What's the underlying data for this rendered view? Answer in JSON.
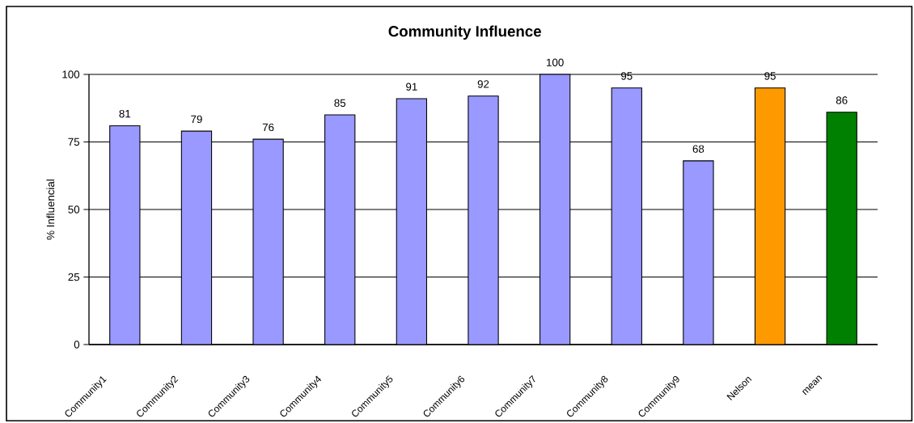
{
  "chart_data": {
    "type": "bar",
    "title": "Community Influence",
    "ylabel": "% Influencial",
    "categories": [
      "Community1",
      "Community2",
      "Community3",
      "Community4",
      "Community5",
      "Community6",
      "Community7",
      "Community8",
      "Community9",
      "Nelson",
      "mean"
    ],
    "values": [
      81,
      79,
      76,
      85,
      91,
      92,
      100,
      95,
      68,
      95,
      86
    ],
    "colors": [
      "#9999ff",
      "#9999ff",
      "#9999ff",
      "#9999ff",
      "#9999ff",
      "#9999ff",
      "#9999ff",
      "#9999ff",
      "#9999ff",
      "#ff9900",
      "#008000"
    ],
    "ylim": [
      0,
      100
    ],
    "yticks": [
      0,
      25,
      50,
      75,
      100
    ],
    "grid": "y",
    "data_labels": true
  }
}
